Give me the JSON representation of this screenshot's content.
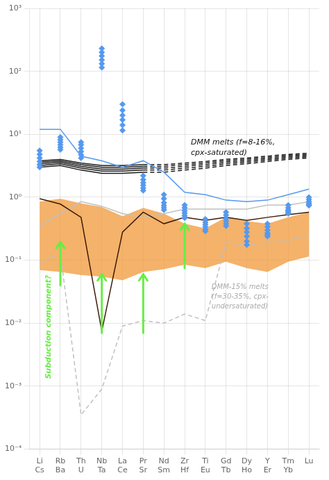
{
  "chart_data": {
    "type": "line",
    "categories": [
      [
        "Li",
        "Cs"
      ],
      [
        "Rb",
        "Ba"
      ],
      [
        "Th",
        "U"
      ],
      [
        "Nb",
        "Ta"
      ],
      [
        "La",
        "Ce"
      ],
      [
        "Pr",
        "Sr"
      ],
      [
        "Nd",
        "Sm"
      ],
      [
        "Zr",
        "Hf"
      ],
      [
        "Ti",
        "Eu"
      ],
      [
        "Gd",
        "Tb"
      ],
      [
        "Dy",
        "Ho"
      ],
      [
        "Y",
        "Er"
      ],
      [
        "Tm",
        "Yb"
      ],
      [
        "Lu"
      ]
    ],
    "log": "y",
    "grid": true,
    "ylim": [
      0.0001,
      1000
    ],
    "yticks": [
      {
        "value": 0.0001,
        "label": "10⁻⁴"
      },
      {
        "value": 0.001,
        "label": "10⁻³"
      },
      {
        "value": 0.01,
        "label": "10⁻²"
      },
      {
        "value": 0.1,
        "label": "10⁻¹"
      },
      {
        "value": 1,
        "label": "10⁰"
      },
      {
        "value": 10,
        "label": "10¹"
      },
      {
        "value": 100,
        "label": "10²"
      },
      {
        "value": 1000,
        "label": "10³"
      }
    ],
    "series": [
      {
        "type": "line",
        "line_style": "solid",
        "color": "#1a1a1a",
        "values": [
          3.8,
          4.0,
          3.5,
          3.2,
          3.2,
          3.3,
          null,
          null,
          null,
          null,
          null,
          null,
          null,
          null
        ]
      },
      {
        "type": "line",
        "line_style": "dashed",
        "color": "#1a1a1a",
        "values": [
          null,
          null,
          null,
          null,
          null,
          3.3,
          3.3,
          3.5,
          3.7,
          4.0,
          4.2,
          4.5,
          4.8,
          5.0
        ]
      },
      {
        "type": "line",
        "line_style": "solid",
        "color": "#1a1a1a",
        "values": [
          3.6,
          3.8,
          3.3,
          3.0,
          3.0,
          3.1,
          null,
          null,
          null,
          null,
          null,
          null,
          null,
          null
        ]
      },
      {
        "type": "line",
        "line_style": "dashed",
        "color": "#1a1a1a",
        "values": [
          null,
          null,
          null,
          null,
          null,
          3.1,
          3.1,
          3.3,
          3.5,
          3.8,
          4.0,
          4.3,
          4.6,
          4.8
        ]
      },
      {
        "type": "line",
        "line_style": "solid",
        "color": "#1a1a1a",
        "values": [
          3.4,
          3.6,
          3.1,
          2.8,
          2.8,
          2.9,
          null,
          null,
          null,
          null,
          null,
          null,
          null,
          null
        ]
      },
      {
        "type": "line",
        "line_style": "dashed",
        "color": "#1a1a1a",
        "values": [
          null,
          null,
          null,
          null,
          null,
          2.9,
          2.9,
          3.1,
          3.3,
          3.6,
          3.8,
          4.1,
          4.4,
          4.6
        ]
      },
      {
        "type": "line",
        "line_style": "solid",
        "color": "#1a1a1a",
        "values": [
          3.2,
          3.4,
          2.9,
          2.6,
          2.6,
          2.7,
          null,
          null,
          null,
          null,
          null,
          null,
          null,
          null
        ]
      },
      {
        "type": "line",
        "line_style": "dashed",
        "color": "#1a1a1a",
        "values": [
          null,
          null,
          null,
          null,
          null,
          2.7,
          2.7,
          2.9,
          3.1,
          3.4,
          3.6,
          3.9,
          4.2,
          4.4
        ]
      },
      {
        "type": "line",
        "line_style": "solid",
        "color": "#1a1a1a",
        "values": [
          3.0,
          3.2,
          2.7,
          2.4,
          2.4,
          2.5,
          null,
          null,
          null,
          null,
          null,
          null,
          null,
          null
        ]
      },
      {
        "type": "line",
        "line_style": "dashed",
        "color": "#1a1a1a",
        "values": [
          null,
          null,
          null,
          null,
          null,
          2.5,
          2.5,
          2.7,
          2.9,
          3.2,
          3.4,
          3.7,
          4.0,
          4.2
        ]
      },
      {
        "type": "band",
        "color": "#f09838",
        "values": [
          0.85,
          0.95,
          0.8,
          0.7,
          0.5,
          0.68,
          0.55,
          0.38,
          0.32,
          0.48,
          0.42,
          0.38,
          0.48,
          0.58
        ],
        "lower": [
          0.07,
          0.065,
          0.058,
          0.055,
          0.048,
          0.065,
          0.072,
          0.085,
          0.075,
          0.095,
          0.075,
          0.065,
          0.095,
          0.115
        ]
      },
      {
        "type": "line",
        "line_style": "solid",
        "color": "#c0c0c0",
        "values": [
          0.35,
          0.55,
          0.85,
          0.72,
          0.55,
          0.48,
          0.55,
          0.65,
          0.65,
          0.65,
          0.65,
          0.75,
          0.75,
          0.85
        ]
      },
      {
        "type": "line",
        "line_style": "dashed",
        "color": "#c0c0c0",
        "values": [
          0.09,
          0.13,
          0.00035,
          0.0009,
          0.009,
          0.011,
          0.01,
          0.014,
          0.011,
          0.19,
          0.17,
          0.19,
          0.21,
          0.24
        ]
      },
      {
        "type": "line",
        "line_style": "solid",
        "color": "#3d1a08",
        "values": [
          0.95,
          0.78,
          0.48,
          0.0075,
          0.28,
          0.58,
          0.38,
          0.48,
          0.43,
          0.48,
          0.43,
          0.48,
          0.53,
          0.58
        ]
      },
      {
        "type": "line",
        "line_style": "solid",
        "color": "#5599ee",
        "values": [
          12.0,
          12.0,
          4.5,
          3.8,
          3.0,
          3.8,
          2.5,
          1.2,
          1.1,
          0.9,
          0.85,
          0.9,
          1.1,
          1.35
        ]
      },
      {
        "type": "scatter",
        "marker": "diamond",
        "color": "#5599ee",
        "values": [
          5.5,
          9.0,
          7.5,
          230,
          30,
          2.2,
          1.1,
          0.75,
          0.45,
          0.58,
          0.38,
          0.38,
          0.75,
          1.0
        ]
      },
      {
        "type": "scatter",
        "marker": "diamond",
        "color": "#5599ee",
        "values": [
          4.8,
          8.2,
          6.8,
          200,
          24,
          1.9,
          0.95,
          0.68,
          0.4,
          0.52,
          0.32,
          0.34,
          0.68,
          0.92
        ]
      },
      {
        "type": "scatter",
        "marker": "diamond",
        "color": "#5599ee",
        "values": [
          4.2,
          7.5,
          6.0,
          175,
          20,
          1.7,
          0.82,
          0.61,
          0.37,
          0.46,
          0.28,
          0.3,
          0.63,
          0.85
        ]
      },
      {
        "type": "scatter",
        "marker": "diamond",
        "color": "#5599ee",
        "values": [
          3.7,
          6.8,
          5.3,
          152,
          17,
          1.55,
          0.74,
          0.56,
          0.34,
          0.42,
          0.24,
          0.27,
          0.6,
          0.8
        ]
      },
      {
        "type": "scatter",
        "marker": "diamond",
        "color": "#5599ee",
        "values": [
          3.3,
          6.2,
          4.7,
          132,
          14,
          1.4,
          0.68,
          0.51,
          0.31,
          0.38,
          0.2,
          0.255,
          0.57,
          0.77
        ]
      },
      {
        "type": "scatter",
        "marker": "diamond",
        "color": "#5599ee",
        "values": [
          3.0,
          5.7,
          4.2,
          115,
          11.5,
          1.28,
          0.63,
          0.47,
          0.29,
          0.35,
          0.175,
          0.24,
          0.55,
          0.74
        ]
      },
      {
        "type": "arrow",
        "color": "#66ee44",
        "values": [
          null,
          0.195,
          null,
          0.06,
          null,
          0.06,
          null,
          0.38,
          null,
          null,
          null,
          null,
          null,
          null
        ],
        "lower": [
          null,
          0.04,
          null,
          0.007,
          null,
          0.007,
          null,
          0.075,
          null,
          null,
          null,
          null,
          null,
          null
        ]
      }
    ],
    "annotations": [
      {
        "text": "Subduction component?",
        "x": 0.42,
        "y": 0.0013,
        "color": "#66ee44"
      },
      {
        "text": "DMM melts (f=8-16%,\ncpx-saturated)",
        "x": 7.3,
        "y": 8.5,
        "color": "#111111"
      },
      {
        "text": "DMM-15% melts\n(f=30-35%, cpx-\nundersaturated)",
        "x": 8.3,
        "y": 0.042,
        "color": "#aaaaaa"
      }
    ]
  }
}
